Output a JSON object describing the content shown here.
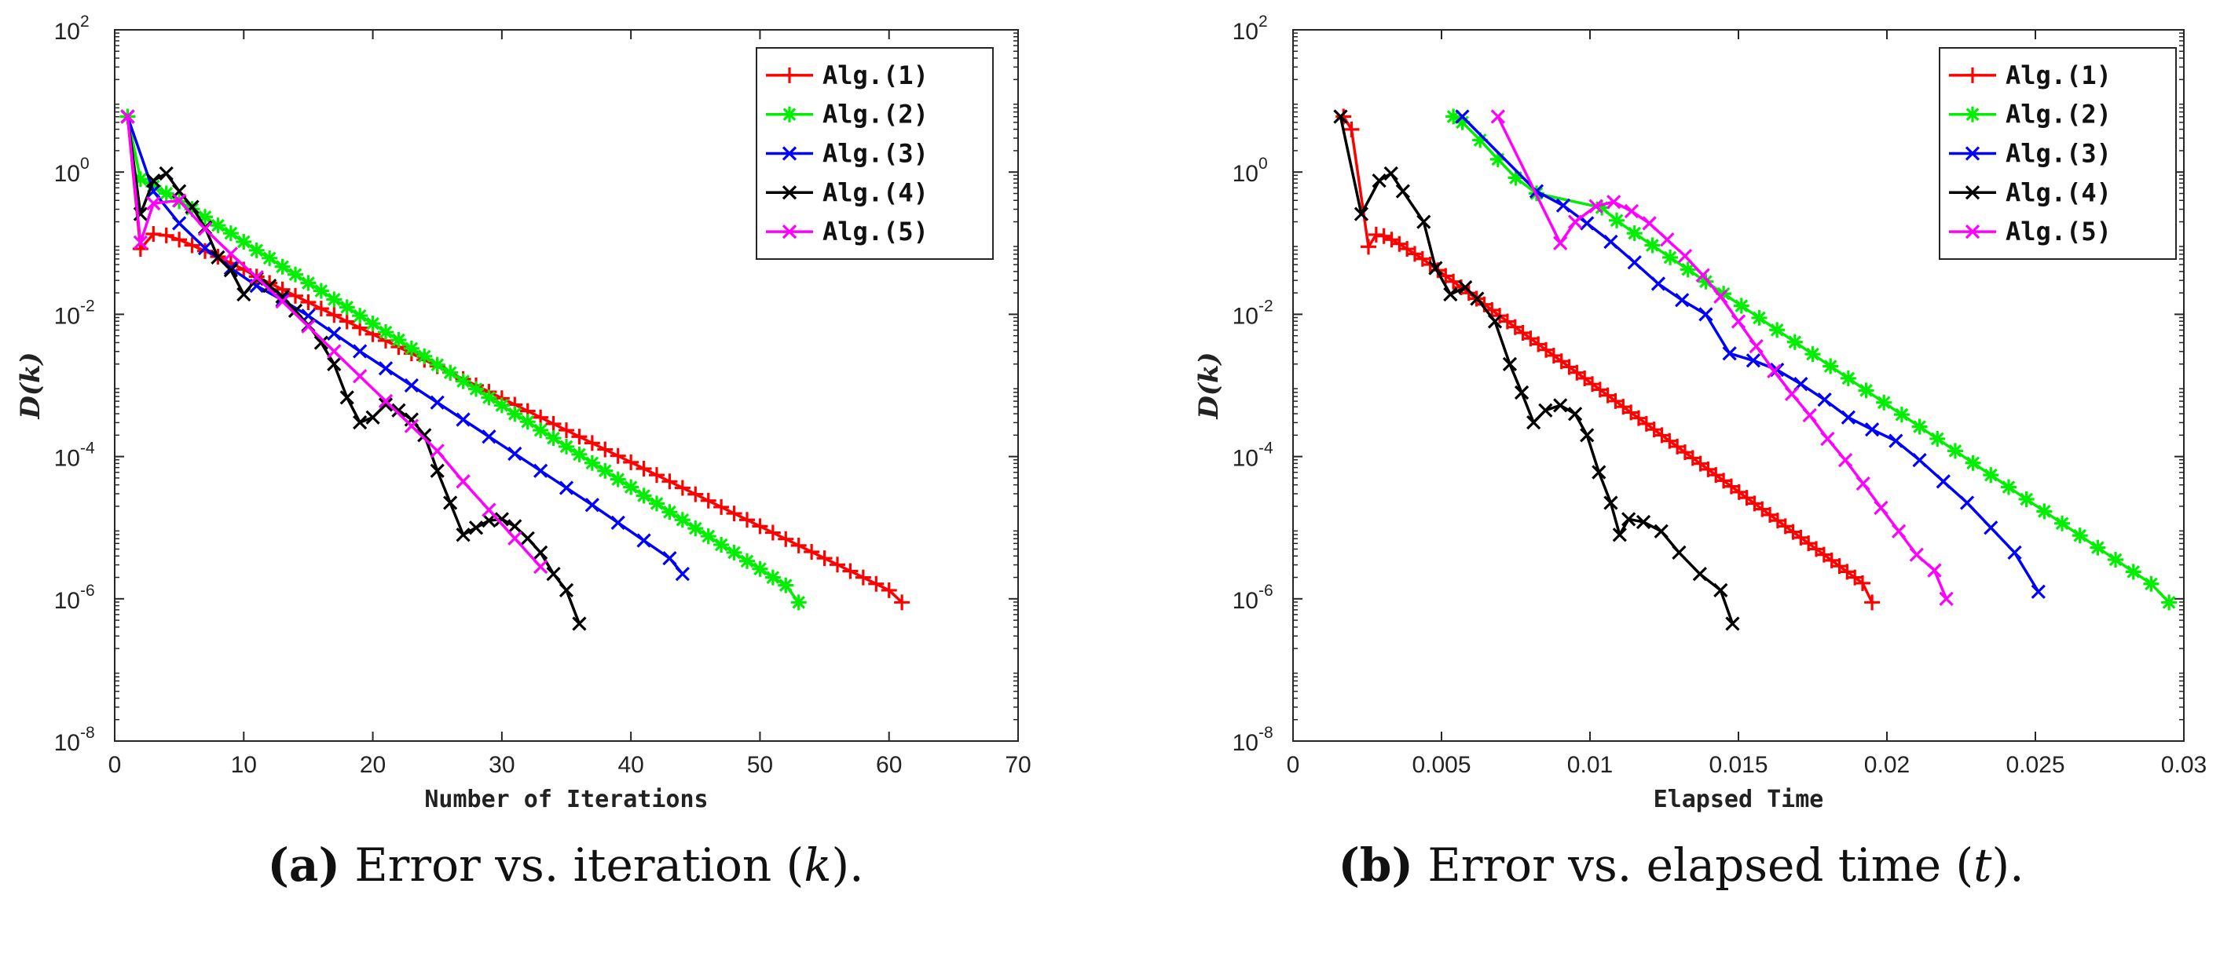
{
  "chart_data": [
    {
      "type": "line",
      "id": "a",
      "xlabel": "Number of Iterations",
      "ylabel": "D(k)",
      "xlim": [
        0,
        70
      ],
      "ylim_log10": [
        -8,
        2
      ],
      "yscale": "log",
      "xticks": [
        "0",
        "10",
        "20",
        "30",
        "40",
        "50",
        "60",
        "70"
      ],
      "xtick_values": [
        0,
        10,
        20,
        30,
        40,
        50,
        60,
        70
      ],
      "yticks": [
        "10",
        "10",
        "10",
        "10",
        "10",
        "10"
      ],
      "ytick_exponents": [
        "-8",
        "-6",
        "-4",
        "-2",
        "0",
        "2"
      ],
      "ytick_values": [
        -8,
        -6,
        -4,
        -2,
        0,
        2
      ],
      "legend_position": "top-right",
      "series": [
        {
          "name": "Alg.(1)",
          "color": "#ff0000",
          "marker": "plus",
          "x": [
            1,
            2,
            3,
            4,
            5,
            6,
            7,
            8,
            9,
            10,
            11,
            12,
            13,
            14,
            15,
            16,
            17,
            18,
            19,
            20,
            21,
            22,
            23,
            24,
            25,
            26,
            27,
            28,
            29,
            30,
            31,
            32,
            33,
            34,
            35,
            36,
            37,
            38,
            39,
            40,
            41,
            42,
            43,
            44,
            45,
            46,
            47,
            48,
            49,
            50,
            51,
            52,
            53,
            54,
            55,
            56,
            57,
            58,
            59,
            60,
            61
          ],
          "log10y": [
            0.78,
            -1.08,
            -0.87,
            -0.89,
            -0.95,
            -1.03,
            -1.11,
            -1.19,
            -1.28,
            -1.37,
            -1.47,
            -1.56,
            -1.65,
            -1.74,
            -1.83,
            -1.92,
            -2.01,
            -2.1,
            -2.19,
            -2.28,
            -2.37,
            -2.46,
            -2.55,
            -2.64,
            -2.73,
            -2.82,
            -2.91,
            -3.0,
            -3.09,
            -3.18,
            -3.27,
            -3.36,
            -3.45,
            -3.54,
            -3.63,
            -3.72,
            -3.81,
            -3.9,
            -3.99,
            -4.08,
            -4.17,
            -4.26,
            -4.35,
            -4.44,
            -4.53,
            -4.62,
            -4.71,
            -4.8,
            -4.89,
            -4.98,
            -5.07,
            -5.16,
            -5.25,
            -5.34,
            -5.43,
            -5.52,
            -5.61,
            -5.7,
            -5.79,
            -5.88,
            -6.05
          ]
        },
        {
          "name": "Alg.(2)",
          "color": "#00ee00",
          "marker": "star",
          "x": [
            1,
            2,
            3,
            4,
            5,
            6,
            7,
            8,
            9,
            10,
            11,
            12,
            13,
            14,
            15,
            16,
            17,
            18,
            19,
            20,
            21,
            22,
            23,
            24,
            25,
            26,
            27,
            28,
            29,
            30,
            31,
            32,
            33,
            34,
            35,
            36,
            37,
            38,
            39,
            40,
            41,
            42,
            43,
            44,
            45,
            46,
            47,
            48,
            49,
            50,
            51,
            52,
            53
          ],
          "log10y": [
            0.78,
            -0.1,
            -0.2,
            -0.3,
            -0.41,
            -0.52,
            -0.63,
            -0.75,
            -0.86,
            -0.98,
            -1.1,
            -1.21,
            -1.33,
            -1.44,
            -1.56,
            -1.67,
            -1.79,
            -1.9,
            -2.02,
            -2.13,
            -2.25,
            -2.36,
            -2.48,
            -2.59,
            -2.71,
            -2.82,
            -2.94,
            -3.05,
            -3.17,
            -3.28,
            -3.4,
            -3.51,
            -3.63,
            -3.74,
            -3.86,
            -3.97,
            -4.09,
            -4.2,
            -4.32,
            -4.43,
            -4.55,
            -4.66,
            -4.78,
            -4.89,
            -5.01,
            -5.12,
            -5.24,
            -5.35,
            -5.47,
            -5.58,
            -5.7,
            -5.81,
            -6.05
          ]
        },
        {
          "name": "Alg.(3)",
          "color": "#0000ff",
          "marker": "cross",
          "x": [
            1,
            3,
            5,
            7,
            9,
            11,
            13,
            15,
            17,
            19,
            21,
            23,
            25,
            27,
            29,
            31,
            33,
            35,
            37,
            39,
            41,
            43,
            44
          ],
          "log10y": [
            0.78,
            -0.27,
            -0.72,
            -1.07,
            -1.35,
            -1.6,
            -1.8,
            -2.02,
            -2.27,
            -2.52,
            -2.76,
            -3.0,
            -3.24,
            -3.48,
            -3.72,
            -3.96,
            -4.2,
            -4.44,
            -4.68,
            -4.93,
            -5.18,
            -5.43,
            -5.65
          ]
        },
        {
          "name": "Alg.(4)",
          "color": "#000000",
          "marker": "cross",
          "x": [
            1,
            2,
            3,
            4,
            5,
            6,
            7,
            8,
            9,
            10,
            11,
            12,
            13,
            14,
            15,
            16,
            17,
            18,
            19,
            20,
            21,
            22,
            23,
            24,
            25,
            26,
            27,
            28,
            29,
            30,
            31,
            32,
            33,
            34,
            35,
            36
          ],
          "log10y": [
            0.78,
            -0.59,
            -0.12,
            -0.02,
            -0.27,
            -0.49,
            -0.78,
            -1.2,
            -1.38,
            -1.72,
            -1.5,
            -1.6,
            -1.75,
            -1.95,
            -2.15,
            -2.4,
            -2.7,
            -3.17,
            -3.52,
            -3.45,
            -3.27,
            -3.35,
            -3.48,
            -3.7,
            -4.2,
            -4.65,
            -5.1,
            -5.0,
            -4.9,
            -4.88,
            -4.98,
            -5.15,
            -5.35,
            -5.65,
            -5.88,
            -6.35
          ]
        },
        {
          "name": "Alg.(5)",
          "color": "#ff00ff",
          "marker": "cross",
          "x": [
            1,
            2,
            3,
            5,
            7,
            9,
            11,
            13,
            15,
            17,
            19,
            21,
            23,
            25,
            27,
            29,
            31,
            33
          ],
          "log10y": [
            0.78,
            -0.99,
            -0.44,
            -0.4,
            -0.8,
            -1.15,
            -1.48,
            -1.82,
            -2.17,
            -2.52,
            -2.87,
            -3.22,
            -3.57,
            -3.92,
            -4.35,
            -4.75,
            -5.15,
            -5.55
          ]
        }
      ]
    },
    {
      "type": "line",
      "id": "b",
      "xlabel": "Elapsed Time",
      "ylabel": "D(k)",
      "xlim": [
        0,
        0.03
      ],
      "ylim_log10": [
        -8,
        2
      ],
      "yscale": "log",
      "xticks": [
        "0",
        "0.005",
        "0.01",
        "0.015",
        "0.02",
        "0.025",
        "0.03"
      ],
      "xtick_values": [
        0,
        0.005,
        0.01,
        0.015,
        0.02,
        0.025,
        0.03
      ],
      "yticks": [
        "10",
        "10",
        "10",
        "10",
        "10",
        "10"
      ],
      "ytick_exponents": [
        "-8",
        "-6",
        "-4",
        "-2",
        "0",
        "2"
      ],
      "ytick_values": [
        -8,
        -6,
        -4,
        -2,
        0,
        2
      ],
      "legend_position": "top-right",
      "series": [
        {
          "name": "Alg.(1)",
          "color": "#ff0000",
          "marker": "plus",
          "x": [
            0.0017,
            0.00197,
            0.00254,
            0.0028,
            0.00306,
            0.00332,
            0.00358,
            0.00384,
            0.0041,
            0.00436,
            0.00462,
            0.00488,
            0.00514,
            0.0054,
            0.00566,
            0.00592,
            0.00618,
            0.00644,
            0.0067,
            0.00696,
            0.00722,
            0.00748,
            0.00774,
            0.008,
            0.00826,
            0.00852,
            0.00878,
            0.00904,
            0.0093,
            0.00956,
            0.00982,
            0.01008,
            0.01034,
            0.0106,
            0.01086,
            0.01112,
            0.01138,
            0.01164,
            0.0119,
            0.01216,
            0.01242,
            0.01268,
            0.01294,
            0.0132,
            0.01346,
            0.01372,
            0.01398,
            0.01424,
            0.0145,
            0.01476,
            0.01502,
            0.01528,
            0.01554,
            0.0158,
            0.01606,
            0.01632,
            0.01658,
            0.01684,
            0.0171,
            0.01736,
            0.01762,
            0.01788,
            0.01814,
            0.0184,
            0.01866,
            0.01892,
            0.01918,
            0.0195
          ],
          "log10y": [
            0.78,
            0.6,
            -1.05,
            -0.88,
            -0.9,
            -0.95,
            -1.01,
            -1.08,
            -1.15,
            -1.22,
            -1.3,
            -1.38,
            -1.46,
            -1.54,
            -1.62,
            -1.7,
            -1.78,
            -1.86,
            -1.94,
            -2.02,
            -2.1,
            -2.18,
            -2.26,
            -2.34,
            -2.42,
            -2.5,
            -2.58,
            -2.66,
            -2.74,
            -2.82,
            -2.9,
            -2.98,
            -3.06,
            -3.14,
            -3.22,
            -3.3,
            -3.38,
            -3.46,
            -3.54,
            -3.62,
            -3.7,
            -3.78,
            -3.86,
            -3.94,
            -4.02,
            -4.1,
            -4.18,
            -4.26,
            -4.34,
            -4.42,
            -4.5,
            -4.58,
            -4.66,
            -4.74,
            -4.82,
            -4.9,
            -4.98,
            -5.06,
            -5.14,
            -5.22,
            -5.3,
            -5.38,
            -5.46,
            -5.54,
            -5.62,
            -5.7,
            -5.78,
            -6.05
          ]
        },
        {
          "name": "Alg.(2)",
          "color": "#00ee00",
          "marker": "star",
          "x": [
            0.0054,
            0.0057,
            0.0063,
            0.0069,
            0.0075,
            0.0082,
            0.0104,
            0.0109,
            0.0115,
            0.0121,
            0.0127,
            0.0133,
            0.0139,
            0.0145,
            0.0151,
            0.0157,
            0.0163,
            0.0169,
            0.0175,
            0.0181,
            0.0187,
            0.0193,
            0.0199,
            0.0205,
            0.0211,
            0.0217,
            0.0223,
            0.0229,
            0.0235,
            0.0241,
            0.0247,
            0.0253,
            0.0259,
            0.0265,
            0.0271,
            0.0277,
            0.0283,
            0.0289,
            0.0295
          ],
          "log10y": [
            0.78,
            0.7,
            0.45,
            0.18,
            -0.08,
            -0.3,
            -0.5,
            -0.68,
            -0.86,
            -1.03,
            -1.2,
            -1.37,
            -1.54,
            -1.71,
            -1.88,
            -2.05,
            -2.22,
            -2.39,
            -2.56,
            -2.73,
            -2.9,
            -3.07,
            -3.24,
            -3.41,
            -3.58,
            -3.75,
            -3.92,
            -4.09,
            -4.26,
            -4.43,
            -4.6,
            -4.77,
            -4.94,
            -5.11,
            -5.28,
            -5.45,
            -5.62,
            -5.79,
            -6.05
          ]
        },
        {
          "name": "Alg.(3)",
          "color": "#0000ff",
          "marker": "cross",
          "x": [
            0.0057,
            0.0082,
            0.0091,
            0.0099,
            0.0107,
            0.0115,
            0.0123,
            0.0131,
            0.0139,
            0.0147,
            0.0155,
            0.0163,
            0.0171,
            0.0179,
            0.0187,
            0.0195,
            0.0203,
            0.0211,
            0.0219,
            0.0227,
            0.0235,
            0.0243,
            0.0251
          ],
          "log10y": [
            0.78,
            -0.27,
            -0.47,
            -0.72,
            -0.98,
            -1.27,
            -1.57,
            -1.8,
            -2.0,
            -2.55,
            -2.65,
            -2.78,
            -2.98,
            -3.2,
            -3.45,
            -3.62,
            -3.78,
            -4.05,
            -4.35,
            -4.65,
            -5.0,
            -5.35,
            -5.9
          ]
        },
        {
          "name": "Alg.(4)",
          "color": "#000000",
          "marker": "cross",
          "x": [
            0.0016,
            0.0023,
            0.0029,
            0.0033,
            0.0037,
            0.0044,
            0.0048,
            0.0053,
            0.0058,
            0.0062,
            0.0068,
            0.0073,
            0.0077,
            0.0081,
            0.0085,
            0.009,
            0.0095,
            0.0099,
            0.0103,
            0.0107,
            0.011,
            0.0113,
            0.0118,
            0.0124,
            0.013,
            0.0137,
            0.0144,
            0.0148
          ],
          "log10y": [
            0.78,
            -0.59,
            -0.12,
            -0.02,
            -0.27,
            -0.7,
            -1.35,
            -1.72,
            -1.62,
            -1.78,
            -2.1,
            -2.7,
            -3.1,
            -3.52,
            -3.35,
            -3.28,
            -3.4,
            -3.7,
            -4.22,
            -4.65,
            -5.1,
            -4.88,
            -4.92,
            -5.05,
            -5.35,
            -5.65,
            -5.88,
            -6.35
          ]
        },
        {
          "name": "Alg.(5)",
          "color": "#ff00ff",
          "marker": "cross",
          "x": [
            0.0069,
            0.009,
            0.0095,
            0.0102,
            0.0108,
            0.0114,
            0.012,
            0.0126,
            0.0132,
            0.0138,
            0.0144,
            0.015,
            0.0156,
            0.0162,
            0.0168,
            0.0174,
            0.018,
            0.0186,
            0.0192,
            0.0198,
            0.0204,
            0.021,
            0.0216,
            0.022
          ],
          "log10y": [
            0.78,
            -1.0,
            -0.7,
            -0.48,
            -0.42,
            -0.55,
            -0.72,
            -0.95,
            -1.18,
            -1.45,
            -1.75,
            -2.1,
            -2.45,
            -2.8,
            -3.12,
            -3.42,
            -3.75,
            -4.05,
            -4.38,
            -4.72,
            -5.05,
            -5.38,
            -5.6,
            -6.0
          ]
        }
      ]
    }
  ],
  "captions": {
    "a": {
      "label": "(a)",
      "text": " Error vs. iteration (",
      "var": "k",
      "end": ")."
    },
    "b": {
      "label": "(b)",
      "text": " Error vs. elapsed time (",
      "var": "t",
      "end": ")."
    }
  }
}
